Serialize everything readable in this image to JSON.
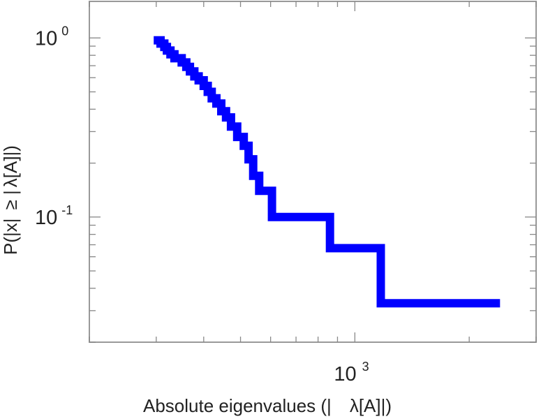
{
  "chart_data": {
    "type": "line",
    "step": true,
    "xscale": "log",
    "yscale": "log",
    "xlabel_parts": [
      "Absolute eigenvalues (|",
      "λ[A]|)"
    ],
    "ylabel_parts": [
      "P(|x|",
      "≥ |",
      "λ[A]|)"
    ],
    "xlim": [
      200,
      3000
    ],
    "ylim": [
      0.02,
      1.6
    ],
    "x_ticks": [
      {
        "value": 1000,
        "base": "10",
        "exp": "3"
      }
    ],
    "y_ticks": [
      {
        "value": 1,
        "base": "10",
        "exp": "0"
      },
      {
        "value": 0.1,
        "base": "10",
        "exp": "-1"
      }
    ],
    "grid": false,
    "legend": "none",
    "series": [
      {
        "color": "#0000ff",
        "x": [
          303,
          308,
          315,
          320,
          327,
          335,
          350,
          360,
          368,
          378,
          388,
          400,
          410,
          420,
          432,
          445,
          458,
          472,
          490,
          510,
          525,
          540,
          560,
          605,
          860,
          1170,
          2350
        ],
        "y": [
          0.97,
          0.93,
          0.89,
          0.85,
          0.81,
          0.77,
          0.73,
          0.69,
          0.65,
          0.61,
          0.58,
          0.54,
          0.5,
          0.46,
          0.43,
          0.39,
          0.36,
          0.32,
          0.28,
          0.25,
          0.21,
          0.17,
          0.14,
          0.1,
          0.067,
          0.033,
          0.033
        ]
      }
    ]
  }
}
